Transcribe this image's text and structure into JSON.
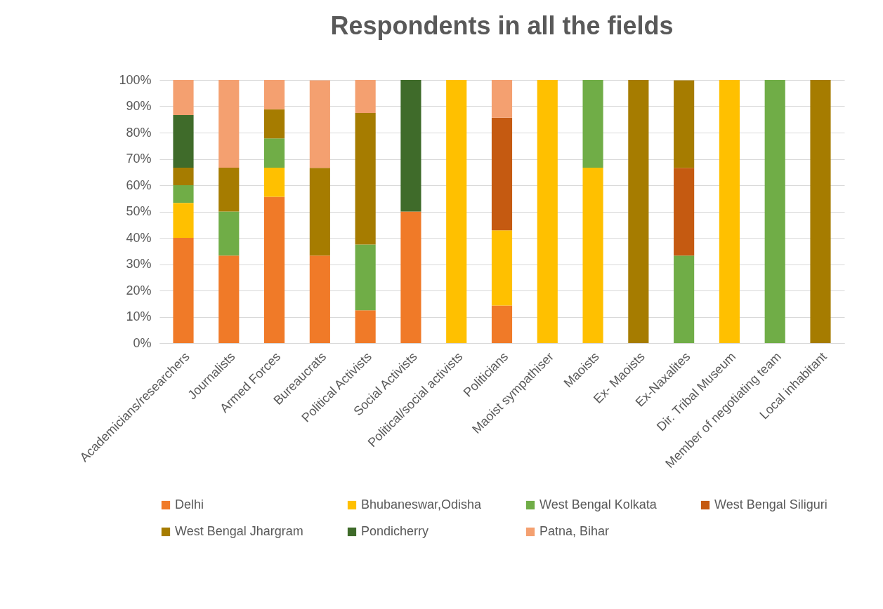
{
  "chart_data": {
    "type": "bar",
    "title": "Respondents in all the fields",
    "stacked": true,
    "categories": [
      "Academicians/researchers",
      "Journalists",
      "Armed Forces",
      "Bureaucrats",
      "Political Activists",
      "Social Activists",
      "Political/social activists",
      "Politicians",
      "Maoist sympathiser",
      "Maoists",
      "Ex- Maoists",
      "Ex-Naxalites",
      "Dir. Tribal Museum",
      "Member of negotiating team",
      "Local inhabitant"
    ],
    "series": [
      {
        "name": "Delhi",
        "color": "#f07a28",
        "values": [
          40,
          33.3,
          55.6,
          33.3,
          12.5,
          50,
          null,
          14.3,
          null,
          null,
          null,
          null,
          null,
          null,
          null
        ]
      },
      {
        "name": "Bhubaneswar,Odisha",
        "color": "#ffc000",
        "values": [
          13.3,
          null,
          11.1,
          null,
          null,
          null,
          100,
          28.6,
          100,
          66.7,
          null,
          null,
          100,
          null,
          null
        ]
      },
      {
        "name": "West Bengal Kolkata",
        "color": "#70ad47",
        "values": [
          6.7,
          16.7,
          11.1,
          null,
          25,
          null,
          null,
          null,
          null,
          33.3,
          null,
          33.3,
          null,
          100,
          null
        ]
      },
      {
        "name": "West Bengal Siliguri",
        "color": "#c55a11",
        "values": [
          null,
          null,
          null,
          null,
          null,
          null,
          null,
          42.8,
          null,
          null,
          null,
          33.3,
          null,
          null,
          null
        ]
      },
      {
        "name": "West Bengal Jhargram",
        "color": "#a67c00",
        "values": [
          6.7,
          16.7,
          11.1,
          33.3,
          50,
          null,
          null,
          null,
          null,
          null,
          100,
          33.3,
          null,
          null,
          100
        ]
      },
      {
        "name": "Pondicherry",
        "color": "#3f6b2a",
        "values": [
          20,
          null,
          null,
          null,
          null,
          50,
          null,
          null,
          null,
          null,
          null,
          null,
          null,
          null,
          null
        ]
      },
      {
        "name": "Patna, Bihar",
        "color": "#f4a070",
        "values": [
          13.3,
          33.3,
          11.1,
          33.3,
          12.5,
          null,
          null,
          14.3,
          null,
          null,
          null,
          null,
          null,
          null,
          null
        ]
      }
    ],
    "ylim": [
      0,
      100
    ],
    "yticks": [
      {
        "value": 0,
        "label": "0%"
      },
      {
        "value": 10,
        "label": "10%"
      },
      {
        "value": 20,
        "label": "20%"
      },
      {
        "value": 30,
        "label": "30%"
      },
      {
        "value": 40,
        "label": "40%"
      },
      {
        "value": 50,
        "label": "50%"
      },
      {
        "value": 60,
        "label": "60%"
      },
      {
        "value": 70,
        "label": "70%"
      },
      {
        "value": 80,
        "label": "80%"
      },
      {
        "value": 90,
        "label": "90%"
      },
      {
        "value": 100,
        "label": "100%"
      }
    ],
    "grid": true,
    "legend": "bottom"
  }
}
